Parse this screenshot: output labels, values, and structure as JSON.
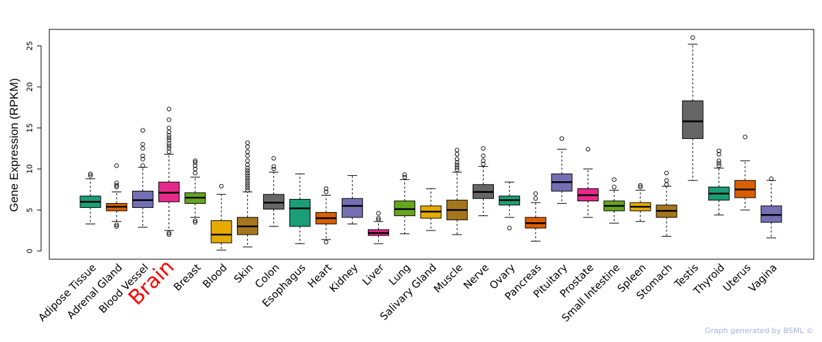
{
  "chart_data": {
    "type": "boxplot",
    "title": "",
    "xlabel": "",
    "ylabel": "Gene Expression (RPKM)",
    "ylim": [
      -1,
      27
    ],
    "yticks": [
      0,
      5,
      10,
      15,
      20,
      25
    ],
    "highlight": "Brain",
    "highlight_color": "#ff0000",
    "categories": [
      {
        "name": "Adipose Tissue",
        "color": "#1b9e77",
        "q1": 5.3,
        "median": 6.0,
        "q3": 6.7,
        "whisker_low": 3.3,
        "whisker_high": 8.8,
        "outliers": [
          9.2,
          9.4
        ]
      },
      {
        "name": "Adrenal Gland",
        "color": "#d95f02",
        "q1": 4.9,
        "median": 5.4,
        "q3": 5.8,
        "whisker_low": 3.6,
        "whisker_high": 7.2,
        "outliers": [
          3.0,
          3.2,
          7.8,
          8.0,
          8.3,
          10.4
        ]
      },
      {
        "name": "Blood Vessel",
        "color": "#7570b3",
        "q1": 5.3,
        "median": 6.2,
        "q3": 7.3,
        "whisker_low": 2.9,
        "whisker_high": 10.2,
        "outliers": [
          10.4,
          11.2,
          11.6,
          12.5,
          13.0,
          14.7
        ]
      },
      {
        "name": "Brain",
        "color": "#e7298a",
        "q1": 6.0,
        "median": 7.1,
        "q3": 8.4,
        "whisker_low": 2.5,
        "whisker_high": 11.8,
        "outliers": [
          2.0,
          2.2,
          12.1,
          12.5,
          12.8,
          13.1,
          13.5,
          13.8,
          14.1,
          14.5,
          15.0,
          16.0,
          17.3
        ]
      },
      {
        "name": "Breast",
        "color": "#66a61e",
        "q1": 5.8,
        "median": 6.5,
        "q3": 7.1,
        "whisker_low": 4.1,
        "whisker_high": 9.0,
        "outliers": [
          3.5,
          3.7,
          9.5,
          10.0,
          10.4,
          10.8,
          11.0
        ]
      },
      {
        "name": "Blood",
        "color": "#e6ab02",
        "q1": 1.0,
        "median": 2.0,
        "q3": 3.7,
        "whisker_low": 0.1,
        "whisker_high": 6.9,
        "outliers": [
          7.9
        ]
      },
      {
        "name": "Skin",
        "color": "#a6761d",
        "q1": 2.0,
        "median": 3.0,
        "q3": 4.1,
        "whisker_low": 0.5,
        "whisker_high": 7.2,
        "outliers": [
          7.4,
          7.7,
          8.0,
          8.3,
          8.6,
          8.9,
          9.2,
          9.5,
          9.8,
          10.1,
          10.5,
          11.0,
          11.6,
          12.1,
          12.7,
          13.2
        ]
      },
      {
        "name": "Colon",
        "color": "#666666",
        "q1": 5.1,
        "median": 5.9,
        "q3": 6.9,
        "whisker_low": 3.0,
        "whisker_high": 9.6,
        "outliers": [
          10.0,
          10.3,
          11.3
        ]
      },
      {
        "name": "Esophagus",
        "color": "#1b9e77",
        "q1": 3.0,
        "median": 5.2,
        "q3": 6.3,
        "whisker_low": 0.9,
        "whisker_high": 9.4,
        "outliers": []
      },
      {
        "name": "Heart",
        "color": "#d95f02",
        "q1": 3.3,
        "median": 4.0,
        "q3": 4.7,
        "whisker_low": 1.4,
        "whisker_high": 6.8,
        "outliers": [
          1.1,
          7.2,
          7.6
        ]
      },
      {
        "name": "Kidney",
        "color": "#7570b3",
        "q1": 4.1,
        "median": 5.5,
        "q3": 6.4,
        "whisker_low": 3.3,
        "whisker_high": 9.2,
        "outliers": []
      },
      {
        "name": "Liver",
        "color": "#e7298a",
        "q1": 1.9,
        "median": 2.2,
        "q3": 2.6,
        "whisker_low": 0.9,
        "whisker_high": 3.6,
        "outliers": [
          3.8,
          4.0,
          4.6
        ]
      },
      {
        "name": "Lung",
        "color": "#66a61e",
        "q1": 4.3,
        "median": 5.1,
        "q3": 6.1,
        "whisker_low": 2.1,
        "whisker_high": 8.7,
        "outliers": [
          9.0,
          9.3
        ]
      },
      {
        "name": "Salivary Gland",
        "color": "#e6ab02",
        "q1": 4.0,
        "median": 4.8,
        "q3": 5.5,
        "whisker_low": 2.5,
        "whisker_high": 7.6,
        "outliers": []
      },
      {
        "name": "Muscle",
        "color": "#a6761d",
        "q1": 3.8,
        "median": 5.0,
        "q3": 6.2,
        "whisker_low": 2.0,
        "whisker_high": 9.6,
        "outliers": [
          9.9,
          10.2,
          10.5,
          10.8,
          11.2,
          11.8,
          12.3
        ]
      },
      {
        "name": "Nerve",
        "color": "#666666",
        "q1": 6.4,
        "median": 7.2,
        "q3": 8.1,
        "whisker_low": 4.3,
        "whisker_high": 10.3,
        "outliers": [
          10.6,
          11.0,
          11.6,
          12.5
        ]
      },
      {
        "name": "Ovary",
        "color": "#1b9e77",
        "q1": 5.6,
        "median": 6.2,
        "q3": 6.7,
        "whisker_low": 4.1,
        "whisker_high": 8.4,
        "outliers": [
          2.8
        ]
      },
      {
        "name": "Pancreas",
        "color": "#d95f02",
        "q1": 2.8,
        "median": 3.4,
        "q3": 4.1,
        "whisker_low": 1.2,
        "whisker_high": 5.9,
        "outliers": [
          6.4,
          7.0
        ]
      },
      {
        "name": "Pituitary",
        "color": "#7570b3",
        "q1": 7.3,
        "median": 8.4,
        "q3": 9.4,
        "whisker_low": 5.8,
        "whisker_high": 12.4,
        "outliers": [
          13.7
        ]
      },
      {
        "name": "Prostate",
        "color": "#e7298a",
        "q1": 6.1,
        "median": 6.8,
        "q3": 7.6,
        "whisker_low": 4.1,
        "whisker_high": 10.0,
        "outliers": [
          12.4
        ]
      },
      {
        "name": "Small Intestine",
        "color": "#66a61e",
        "q1": 4.9,
        "median": 5.5,
        "q3": 6.1,
        "whisker_low": 3.4,
        "whisker_high": 7.4,
        "outliers": [
          7.8,
          8.7
        ]
      },
      {
        "name": "Spleen",
        "color": "#e6ab02",
        "q1": 4.9,
        "median": 5.4,
        "q3": 5.9,
        "whisker_low": 3.6,
        "whisker_high": 7.4,
        "outliers": [
          7.8,
          8.0
        ]
      },
      {
        "name": "Stomach",
        "color": "#a6761d",
        "q1": 4.1,
        "median": 4.9,
        "q3": 5.6,
        "whisker_low": 1.8,
        "whisker_high": 7.9,
        "outliers": [
          8.1,
          8.6,
          9.5
        ]
      },
      {
        "name": "Testis",
        "color": "#666666",
        "q1": 13.7,
        "median": 15.8,
        "q3": 18.3,
        "whisker_low": 8.6,
        "whisker_high": 25.2,
        "outliers": [
          26.0
        ]
      },
      {
        "name": "Thyroid",
        "color": "#1b9e77",
        "q1": 6.2,
        "median": 7.0,
        "q3": 7.8,
        "whisker_low": 4.4,
        "whisker_high": 10.1,
        "outliers": [
          10.4,
          10.7,
          11.0,
          11.8,
          12.2
        ]
      },
      {
        "name": "Uterus",
        "color": "#d95f02",
        "q1": 6.5,
        "median": 7.5,
        "q3": 8.6,
        "whisker_low": 5.0,
        "whisker_high": 11.0,
        "outliers": [
          13.9
        ]
      },
      {
        "name": "Vagina",
        "color": "#7570b3",
        "q1": 3.5,
        "median": 4.4,
        "q3": 5.5,
        "whisker_low": 1.6,
        "whisker_high": 8.6,
        "outliers": [
          8.8
        ]
      }
    ]
  },
  "footer": {
    "credit": "Graph generated by BSML ©"
  }
}
